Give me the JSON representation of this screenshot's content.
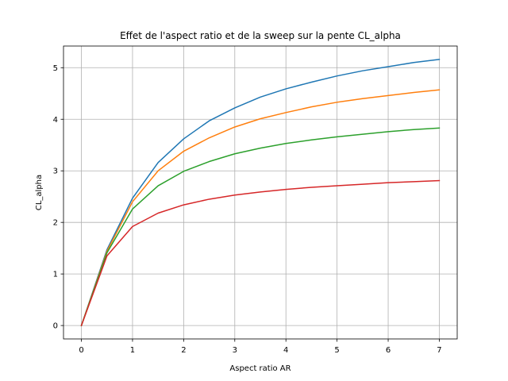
{
  "chart_data": {
    "type": "line",
    "title": "Effet de l'aspect ratio et de la sweep sur la pente CL_alpha",
    "xlabel": "Aspect ratio AR",
    "ylabel": "CL_alpha",
    "xlim": [
      -0.35,
      7.35
    ],
    "ylim": [
      -0.26,
      5.42
    ],
    "xticks": [
      0,
      1,
      2,
      3,
      4,
      5,
      6,
      7
    ],
    "yticks": [
      0,
      1,
      2,
      3,
      4,
      5
    ],
    "grid": true,
    "legend": "none",
    "x": [
      0,
      0.5,
      1,
      1.5,
      2,
      2.5,
      3,
      3.5,
      4,
      4.5,
      5,
      5.5,
      6,
      6.5,
      7
    ],
    "series": [
      {
        "color": "#1f77b4",
        "values": [
          0,
          1.47,
          2.47,
          3.16,
          3.62,
          3.97,
          4.22,
          4.43,
          4.59,
          4.72,
          4.84,
          4.94,
          5.02,
          5.1,
          5.16
        ]
      },
      {
        "color": "#ff7f0e",
        "values": [
          0,
          1.44,
          2.4,
          3.0,
          3.38,
          3.64,
          3.85,
          4.01,
          4.13,
          4.24,
          4.33,
          4.4,
          4.46,
          4.52,
          4.57
        ]
      },
      {
        "color": "#2ca02c",
        "values": [
          0,
          1.41,
          2.26,
          2.71,
          2.99,
          3.18,
          3.33,
          3.44,
          3.53,
          3.6,
          3.66,
          3.71,
          3.76,
          3.8,
          3.83
        ]
      },
      {
        "color": "#d62728",
        "values": [
          0,
          1.35,
          1.92,
          2.18,
          2.34,
          2.45,
          2.53,
          2.59,
          2.64,
          2.68,
          2.71,
          2.74,
          2.77,
          2.79,
          2.81
        ]
      }
    ]
  }
}
